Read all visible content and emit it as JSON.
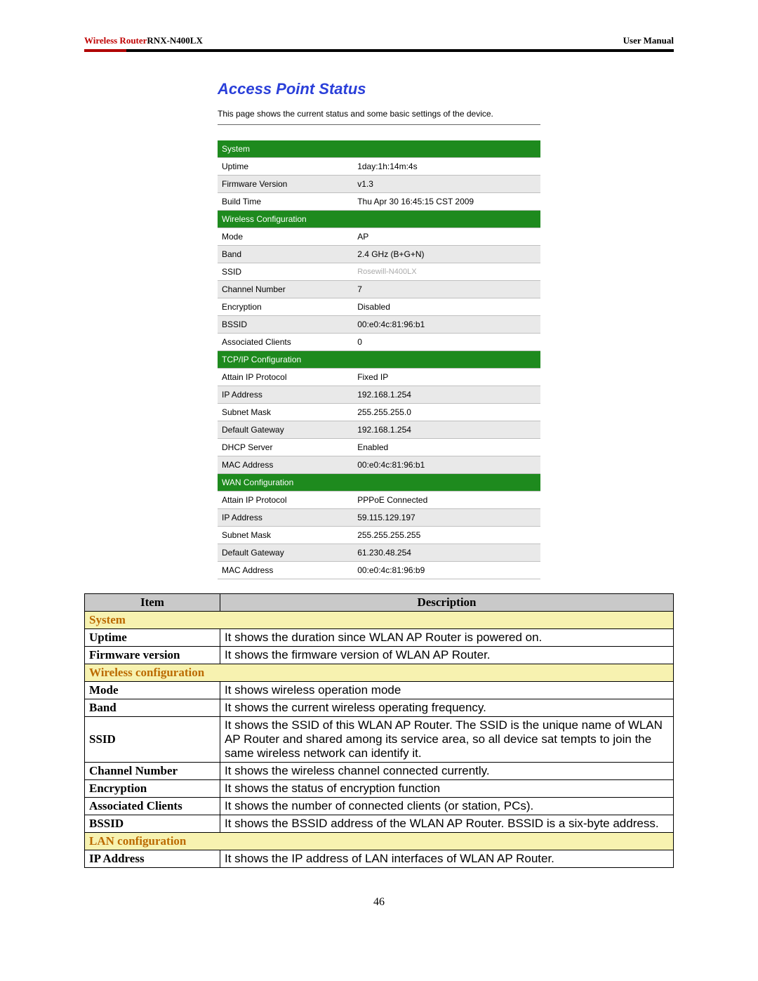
{
  "header": {
    "brand_prefix": "Wireless Router",
    "model": "RNX-N400LX",
    "right": "User Manual"
  },
  "status": {
    "title": "Access Point Status",
    "desc": "This page shows the current status and some basic settings of the device.",
    "sections": [
      {
        "name": "System",
        "rows": [
          {
            "label": "Uptime",
            "value": "1day:1h:14m:4s"
          },
          {
            "label": "Firmware Version",
            "value": "v1.3"
          },
          {
            "label": "Build Time",
            "value": "Thu Apr 30 16:45:15 CST 2009"
          }
        ]
      },
      {
        "name": "Wireless Configuration",
        "rows": [
          {
            "label": "Mode",
            "value": "AP"
          },
          {
            "label": "Band",
            "value": "2.4 GHz (B+G+N)"
          },
          {
            "label": "SSID",
            "value": "Rosewill-N400LX",
            "grey": true
          },
          {
            "label": "Channel Number",
            "value": "7"
          },
          {
            "label": "Encryption",
            "value": "Disabled"
          },
          {
            "label": "BSSID",
            "value": "00:e0:4c:81:96:b1"
          },
          {
            "label": "Associated Clients",
            "value": "0"
          }
        ]
      },
      {
        "name": "TCP/IP Configuration",
        "rows": [
          {
            "label": "Attain IP Protocol",
            "value": "Fixed IP"
          },
          {
            "label": "IP Address",
            "value": "192.168.1.254"
          },
          {
            "label": "Subnet Mask",
            "value": "255.255.255.0"
          },
          {
            "label": "Default Gateway",
            "value": "192.168.1.254"
          },
          {
            "label": "DHCP Server",
            "value": "Enabled"
          },
          {
            "label": "MAC Address",
            "value": "00:e0:4c:81:96:b1"
          }
        ]
      },
      {
        "name": "WAN Configuration",
        "rows": [
          {
            "label": "Attain IP Protocol",
            "value": "PPPoE Connected"
          },
          {
            "label": "IP Address",
            "value": "59.115.129.197"
          },
          {
            "label": "Subnet Mask",
            "value": "255.255.255.255"
          },
          {
            "label": "Default Gateway",
            "value": "61.230.48.254"
          },
          {
            "label": "MAC Address",
            "value": "00:e0:4c:81:96:b9"
          }
        ]
      }
    ]
  },
  "desc_table": {
    "headers": {
      "item": "Item",
      "desc": "Description"
    },
    "groups": [
      {
        "name": "System",
        "rows": [
          {
            "item": "Uptime",
            "desc": "It shows the duration since WLAN AP Router is powered on."
          },
          {
            "item": "Firmware version",
            "desc": "It shows the firmware version of WLAN AP Router."
          }
        ]
      },
      {
        "name": "Wireless configuration",
        "rows": [
          {
            "item": "Mode",
            "desc": "It shows wireless operation mode"
          },
          {
            "item": "Band",
            "desc": "It shows the current wireless operating frequency."
          },
          {
            "item": "SSID",
            "desc": "It shows the SSID of this WLAN AP Router. The SSID is the unique name of WLAN AP Router and shared among its service area, so all device sat tempts to join the same wireless network can identify it."
          },
          {
            "item": "Channel Number",
            "desc": "It shows the wireless channel connected currently."
          },
          {
            "item": "Encryption",
            "desc": "It shows the status of encryption function"
          },
          {
            "item": "Associated Clients",
            "desc": "It shows the number of connected clients (or station, PCs)."
          },
          {
            "item": "BSSID",
            "desc": "It shows the BSSID address of the WLAN AP Router. BSSID is a six-byte address."
          }
        ]
      },
      {
        "name": "LAN configuration",
        "rows": [
          {
            "item": "IP Address",
            "desc": "It shows the IP address of LAN interfaces of WLAN AP Router."
          }
        ]
      }
    ]
  },
  "page_number": "46"
}
